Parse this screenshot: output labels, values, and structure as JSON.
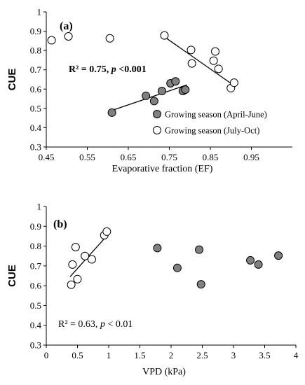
{
  "chart_data": [
    {
      "type": "scatter",
      "panel_label": "(a)",
      "xlabel": "Evaporative fraction (EF)",
      "ylabel": "CUE",
      "xlim": [
        0.45,
        1.05
      ],
      "ylim": [
        0.3,
        1.0
      ],
      "x_ticks": [
        "0.45",
        "0.55",
        "0.65",
        "0.75",
        "0.85",
        "0.95"
      ],
      "x_tick_values": [
        0.45,
        0.55,
        0.65,
        0.75,
        0.85,
        0.95
      ],
      "y_ticks": [
        "0.3",
        "0.4",
        "0.5",
        "0.6",
        "0.7",
        "0.8",
        "0.9",
        "1"
      ],
      "y_tick_values": [
        0.3,
        0.4,
        0.5,
        0.6,
        0.7,
        0.8,
        0.9,
        1.0
      ],
      "annotation": {
        "text": "R² = 0.75, ",
        "p_symbol": "p",
        "p_rest": " <0.001"
      },
      "legend_position": "bottom-right",
      "series": [
        {
          "name": "Growing season (April-June)",
          "marker": "filled",
          "color": "#808080",
          "x": [
            0.61,
            0.693,
            0.713,
            0.732,
            0.753,
            0.765,
            0.783,
            0.789
          ],
          "y": [
            0.478,
            0.565,
            0.538,
            0.59,
            0.63,
            0.64,
            0.59,
            0.597
          ],
          "trendline": {
            "x": [
              0.605,
              0.793
            ],
            "y": [
              0.486,
              0.622
            ]
          }
        },
        {
          "name": "Growing season (July-Oct)",
          "marker": "open",
          "color": "#ffffff",
          "x": [
            0.463,
            0.504,
            0.605,
            0.738,
            0.803,
            0.805,
            0.858,
            0.862,
            0.87,
            0.9,
            0.908
          ],
          "y": [
            0.853,
            0.873,
            0.863,
            0.878,
            0.803,
            0.733,
            0.747,
            0.795,
            0.705,
            0.605,
            0.633
          ],
          "trendline": {
            "x": [
              0.735,
              0.91
            ],
            "y": [
              0.875,
              0.615
            ]
          }
        }
      ]
    },
    {
      "type": "scatter",
      "panel_label": "(b)",
      "xlabel": "VPD (kPa)",
      "ylabel": "CUE",
      "xlim": [
        0,
        4
      ],
      "ylim": [
        0.3,
        1.0
      ],
      "x_ticks": [
        "0",
        "0.5",
        "1",
        "1.5",
        "2",
        "2.5",
        "3",
        "3.5",
        "4"
      ],
      "x_tick_values": [
        0,
        0.5,
        1,
        1.5,
        2,
        2.5,
        3,
        3.5,
        4
      ],
      "y_ticks": [
        "0.3",
        "0.4",
        "0.5",
        "0.6",
        "0.7",
        "0.8",
        "0.9",
        "1"
      ],
      "y_tick_values": [
        0.3,
        0.4,
        0.5,
        0.6,
        0.7,
        0.8,
        0.9,
        1.0
      ],
      "annotation": {
        "text": "R² = 0.63, ",
        "p_symbol": "p",
        "p_rest": " < 0.01"
      },
      "series": [
        {
          "name": "Growing season (April-June)",
          "marker": "filled",
          "color": "#808080",
          "x": [
            1.78,
            2.1,
            2.45,
            2.48,
            3.27,
            3.4,
            3.72
          ],
          "y": [
            0.79,
            0.69,
            0.782,
            0.607,
            0.728,
            0.707,
            0.752
          ],
          "trendline": null
        },
        {
          "name": "Growing season (July-Oct)",
          "marker": "open",
          "color": "#ffffff",
          "x": [
            0.4,
            0.42,
            0.47,
            0.5,
            0.62,
            0.73,
            0.93,
            0.97
          ],
          "y": [
            0.605,
            0.707,
            0.795,
            0.633,
            0.75,
            0.733,
            0.855,
            0.873
          ],
          "trendline": {
            "x": [
              0.38,
              0.98
            ],
            "y": [
              0.645,
              0.855
            ]
          }
        }
      ]
    }
  ]
}
